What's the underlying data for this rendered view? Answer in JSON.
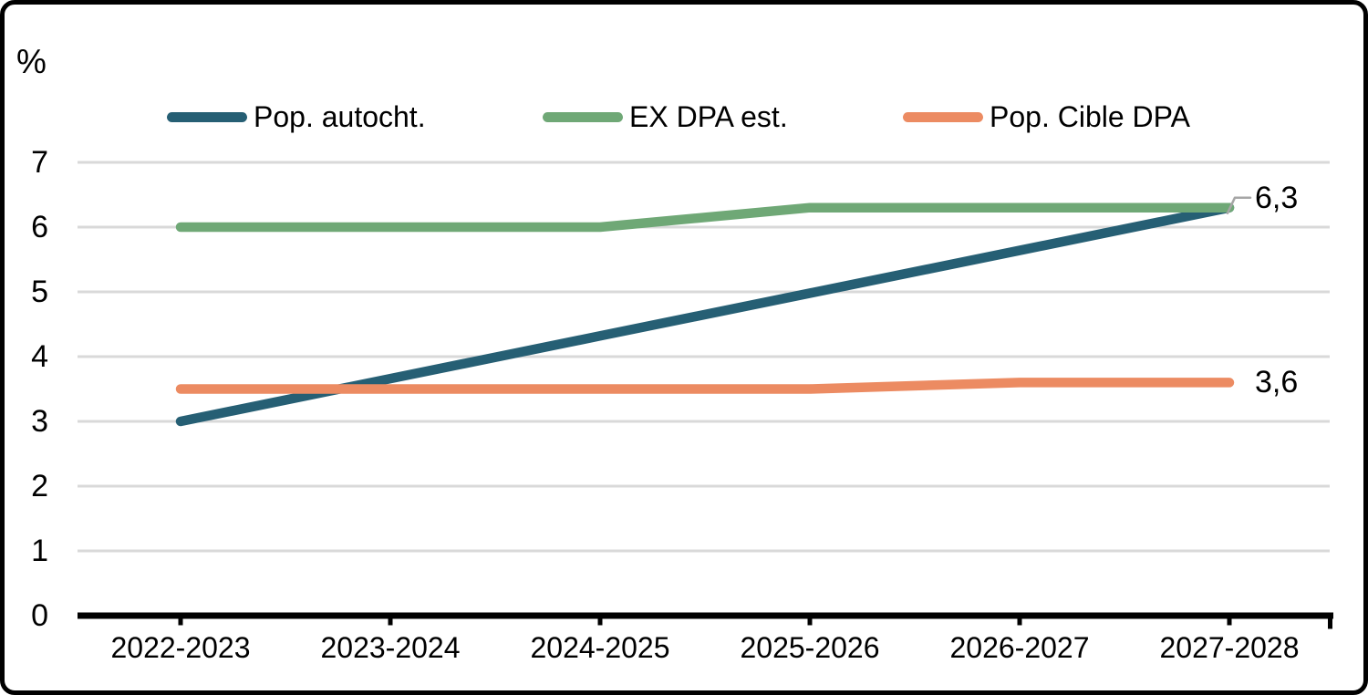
{
  "chart_data": {
    "type": "line",
    "title": "",
    "ylabel": "%",
    "xlabel": "",
    "categories": [
      "2022-2023",
      "2023-2024",
      "2024-2025",
      "2025-2026",
      "2026-2027",
      "2027-2028"
    ],
    "series": [
      {
        "name": "Pop. autocht.",
        "color": "#265F74",
        "values": [
          3.0,
          3.66,
          4.32,
          4.98,
          5.64,
          6.3
        ]
      },
      {
        "name": "EX DPA est.",
        "color": "#6FA876",
        "values": [
          6.0,
          6.0,
          6.0,
          6.3,
          6.3,
          6.3
        ]
      },
      {
        "name": "Pop. Cible DPA",
        "color": "#EC8B62",
        "values": [
          3.5,
          3.5,
          3.5,
          3.5,
          3.6,
          3.6
        ]
      }
    ],
    "y_ticks": [
      0,
      1,
      2,
      3,
      4,
      5,
      6,
      7
    ],
    "ylim": [
      0,
      7
    ],
    "grid": "horizontal",
    "legend_position": "top",
    "end_labels": [
      {
        "text": "6,3",
        "series": "Pop. autocht.",
        "value": 6.3,
        "leader": true
      },
      {
        "text": "3,6",
        "series": "Pop. Cible DPA",
        "value": 3.6,
        "leader": false
      }
    ],
    "colors": {
      "gridline": "#D9D9D9",
      "axis": "#000000",
      "leader": "#A6A6A6",
      "text": "#000000",
      "background": "#FFFFFF"
    }
  }
}
